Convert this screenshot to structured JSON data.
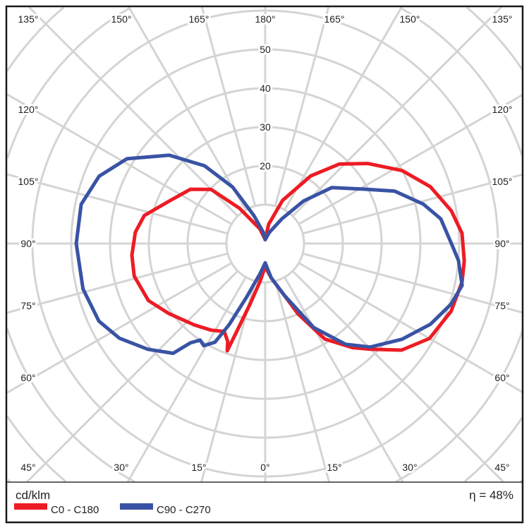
{
  "chart_data": {
    "type": "polar",
    "unit_label": "cd/klm",
    "efficiency_label": "η = 48%",
    "radial_ticks": [
      20,
      30,
      40,
      50
    ],
    "ring_step": 10,
    "angle_labels": {
      "top": [
        "135°",
        "150°",
        "165°",
        "180°",
        "165°",
        "150°",
        "135°"
      ],
      "left": [
        "120°",
        "105°",
        "90°",
        "75°",
        "60°"
      ],
      "right": [
        "120°",
        "105°",
        "90°",
        "75°",
        "60°"
      ],
      "bottom": [
        "45°",
        "30°",
        "15°",
        "0°",
        "15°",
        "30°",
        "45°"
      ]
    },
    "series": [
      {
        "name": "C0 - C180",
        "color": "#ed1c24",
        "right_half": [
          [
            0,
            6
          ],
          [
            10,
            9
          ],
          [
            20,
            14
          ],
          [
            25,
            20
          ],
          [
            32,
            29
          ],
          [
            40,
            35
          ],
          [
            45,
            38.5
          ],
          [
            52,
            44.6
          ],
          [
            60,
            48.9
          ],
          [
            70,
            51
          ],
          [
            79,
            51.7
          ],
          [
            85,
            51.5
          ],
          [
            93,
            50.8
          ],
          [
            100,
            48.7
          ],
          [
            109,
            45
          ],
          [
            118,
            40
          ],
          [
            128,
            33.5
          ],
          [
            137,
            28
          ],
          [
            146,
            21
          ],
          [
            158,
            12
          ],
          [
            170,
            5
          ],
          [
            180,
            1
          ]
        ],
        "left_half": [
          [
            0,
            6
          ],
          [
            8,
            10
          ],
          [
            14,
            16
          ],
          [
            18,
            24
          ],
          [
            19.5,
            29.3
          ],
          [
            21,
            27
          ],
          [
            25,
            25
          ],
          [
            32,
            26.3
          ],
          [
            41,
            27.8
          ],
          [
            54,
            30.7
          ],
          [
            64,
            33.5
          ],
          [
            76,
            34.8
          ],
          [
            85,
            34.5
          ],
          [
            95,
            33.6
          ],
          [
            103,
            32
          ],
          [
            114,
            27
          ],
          [
            126,
            23.8
          ],
          [
            135,
            19.7
          ],
          [
            144,
            11.2
          ],
          [
            160,
            4
          ],
          [
            180,
            1
          ]
        ]
      },
      {
        "name": "C90 - C270",
        "color": "#3953a4",
        "right_half": [
          [
            0,
            5
          ],
          [
            10,
            9
          ],
          [
            20,
            14
          ],
          [
            30,
            25
          ],
          [
            38.6,
            33.2
          ],
          [
            45.4,
            38
          ],
          [
            55,
            43
          ],
          [
            64,
            47.4
          ],
          [
            72,
            50.4
          ],
          [
            78,
            51.9
          ],
          [
            85,
            50
          ],
          [
            90,
            48
          ],
          [
            98,
            45.7
          ],
          [
            104,
            42
          ],
          [
            112,
            36
          ],
          [
            119,
            28.9
          ],
          [
            130,
            22.4
          ],
          [
            138,
            14.7
          ],
          [
            146,
            7.7
          ],
          [
            160,
            3
          ],
          [
            180,
            1
          ]
        ],
        "left_half": [
          [
            0,
            5
          ],
          [
            10,
            8
          ],
          [
            19,
            14.4
          ],
          [
            24,
            22.9
          ],
          [
            27,
            28.5
          ],
          [
            31,
            30.7
          ],
          [
            34,
            30
          ],
          [
            37,
            32
          ],
          [
            40,
            36.9
          ],
          [
            48,
            40.7
          ],
          [
            57,
            44.8
          ],
          [
            65,
            47.3
          ],
          [
            76,
            48.4
          ],
          [
            90,
            48.7
          ],
          [
            102,
            48.5
          ],
          [
            112,
            46.2
          ],
          [
            121.5,
            41.8
          ],
          [
            132.6,
            33.6
          ],
          [
            142,
            25.4
          ],
          [
            150,
            16.8
          ],
          [
            158,
            7.8
          ],
          [
            170,
            3
          ],
          [
            180,
            1
          ]
        ]
      }
    ]
  }
}
